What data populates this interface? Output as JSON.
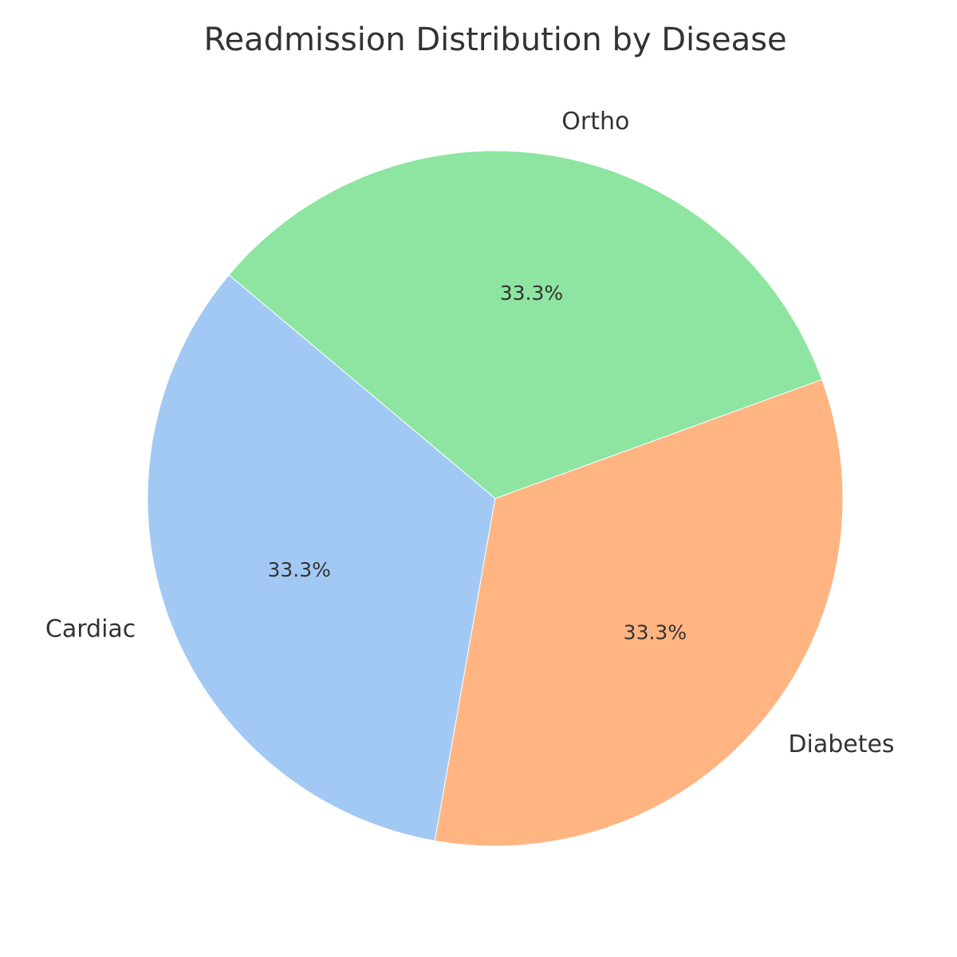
{
  "chart_data": {
    "type": "pie",
    "title": "Readmission Distribution by Disease",
    "categories": [
      "Cardiac",
      "Diabetes",
      "Ortho"
    ],
    "values": [
      33.3,
      33.3,
      33.3
    ],
    "percent_labels": [
      "33.3%",
      "33.3%",
      "33.3%"
    ],
    "colors": [
      "#a1c9f4",
      "#ffb482",
      "#8de5a1"
    ],
    "edge_color": "#ffffff",
    "start_angle_deg": 140,
    "direction": "counterclockwise",
    "legend": "none"
  }
}
